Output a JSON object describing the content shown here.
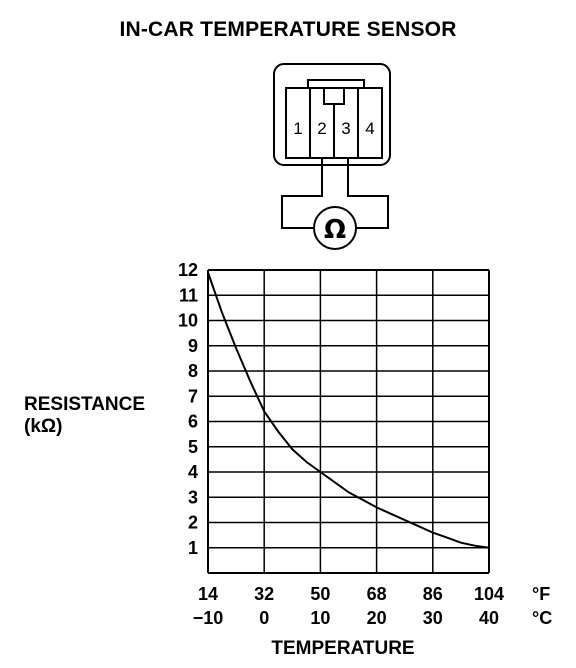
{
  "title": "IN-CAR TEMPERATURE SENSOR",
  "connector": {
    "pins": [
      "1",
      "2",
      "3",
      "4"
    ],
    "meter_symbol": "Ω"
  },
  "chart_data": {
    "type": "line",
    "ylabel_line1": "RESISTANCE",
    "ylabel_line2": "(kΩ)",
    "xlabel": "TEMPERATURE",
    "x_fahrenheit_ticks": [
      "14",
      "32",
      "50",
      "68",
      "86",
      "104"
    ],
    "x_celsius_ticks": [
      "−10",
      "0",
      "10",
      "20",
      "30",
      "40"
    ],
    "x_unit_f": "°F",
    "x_unit_c": "°C",
    "y_ticks": [
      "1",
      "2",
      "3",
      "4",
      "5",
      "6",
      "7",
      "8",
      "9",
      "10",
      "11",
      "12"
    ],
    "xlim": [
      -10,
      40
    ],
    "ylim": [
      0,
      12
    ],
    "grid": true,
    "series": [
      {
        "x": [
          -10,
          -7.5,
          -5,
          -2.5,
          0,
          2.5,
          5,
          7.5,
          10,
          12.5,
          15,
          17.5,
          20,
          22.5,
          25,
          27.5,
          30,
          32.5,
          35,
          37.5,
          40
        ],
        "y": [
          11.9,
          10.3,
          8.9,
          7.6,
          6.4,
          5.6,
          4.9,
          4.4,
          4.0,
          3.6,
          3.2,
          2.9,
          2.6,
          2.35,
          2.1,
          1.85,
          1.6,
          1.4,
          1.2,
          1.08,
          1.0
        ]
      }
    ]
  }
}
